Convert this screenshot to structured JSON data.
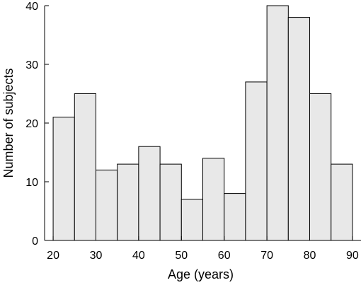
{
  "chart_data": {
    "type": "bar",
    "title": "",
    "xlabel": "Age (years)",
    "ylabel": "Number of subjects",
    "bin_width": 5,
    "bins": [
      {
        "x_start": 20,
        "x_end": 25,
        "value": 21
      },
      {
        "x_start": 25,
        "x_end": 30,
        "value": 25
      },
      {
        "x_start": 30,
        "x_end": 35,
        "value": 12
      },
      {
        "x_start": 35,
        "x_end": 40,
        "value": 13
      },
      {
        "x_start": 40,
        "x_end": 45,
        "value": 16
      },
      {
        "x_start": 45,
        "x_end": 50,
        "value": 13
      },
      {
        "x_start": 50,
        "x_end": 55,
        "value": 7
      },
      {
        "x_start": 55,
        "x_end": 60,
        "value": 14
      },
      {
        "x_start": 60,
        "x_end": 65,
        "value": 8
      },
      {
        "x_start": 65,
        "x_end": 70,
        "value": 27
      },
      {
        "x_start": 70,
        "x_end": 75,
        "value": 40
      },
      {
        "x_start": 75,
        "x_end": 80,
        "value": 38
      },
      {
        "x_start": 80,
        "x_end": 85,
        "value": 25
      },
      {
        "x_start": 85,
        "x_end": 90,
        "value": 13
      }
    ],
    "xlim": [
      18,
      92
    ],
    "ylim": [
      0,
      40
    ],
    "xticks": [
      20,
      30,
      40,
      50,
      60,
      70,
      80,
      90
    ],
    "yticks": [
      0,
      10,
      20,
      30,
      40
    ],
    "grid": false,
    "legend": "none",
    "bar_fill_color": "#e8e8e8",
    "bar_edge_color": "#000000"
  }
}
